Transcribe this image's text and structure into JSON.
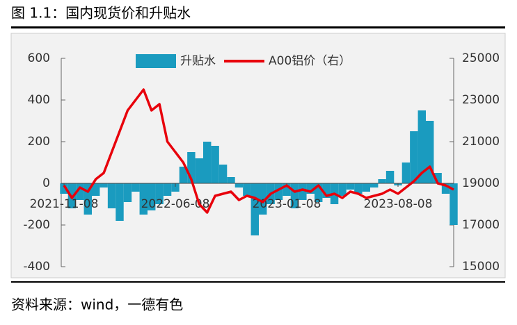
{
  "header": {
    "title": "图 1.1：国内现货价和升贴水"
  },
  "chart_data": {
    "type": "bar-line",
    "categories": [
      "2021-11-08",
      null,
      null,
      null,
      null,
      null,
      null,
      null,
      null,
      null,
      null,
      null,
      null,
      null,
      "2022-06-08",
      null,
      null,
      null,
      null,
      null,
      null,
      null,
      null,
      null,
      null,
      null,
      null,
      null,
      "2023-01-08",
      null,
      null,
      null,
      null,
      null,
      null,
      null,
      null,
      null,
      null,
      null,
      null,
      null,
      "2023-08-08",
      null,
      null,
      null,
      null,
      null,
      null,
      null
    ],
    "series": [
      {
        "name": "升贴水",
        "color": "#1a9bbf",
        "type": "bar",
        "values": [
          -50,
          -120,
          -80,
          -150,
          -60,
          -20,
          -120,
          -180,
          -90,
          -40,
          -150,
          -130,
          -100,
          -60,
          -40,
          80,
          150,
          120,
          200,
          180,
          90,
          30,
          -20,
          -60,
          -250,
          -150,
          -100,
          -80,
          -60,
          -120,
          -80,
          -50,
          -90,
          -70,
          -100,
          -60,
          -30,
          -50,
          -40,
          -20,
          20,
          60,
          -10,
          100,
          250,
          350,
          300,
          50,
          -50,
          -200
        ]
      },
      {
        "name": "A00铝价（右）",
        "color": "#e8000b",
        "type": "line",
        "axis": "y2",
        "values": [
          18900,
          18300,
          18800,
          18600,
          19200,
          19500,
          20500,
          21500,
          22500,
          23000,
          23500,
          22500,
          22800,
          21000,
          20500,
          20000,
          19200,
          18000,
          17600,
          18400,
          18500,
          18600,
          18200,
          18400,
          18300,
          18100,
          18500,
          18700,
          18900,
          18600,
          18700,
          18600,
          18900,
          18400,
          18500,
          18300,
          18600,
          18500,
          18300,
          18400,
          18500,
          18700,
          18500,
          18800,
          19100,
          19500,
          19800,
          19000,
          18900,
          18700
        ]
      }
    ],
    "ylim": [
      -400,
      600
    ],
    "yticks": [
      -400,
      -200,
      0,
      200,
      400,
      600
    ],
    "y2lim": [
      15000,
      25000
    ],
    "y2ticks": [
      15000,
      17000,
      19000,
      21000,
      23000,
      25000
    ],
    "legend": "top"
  },
  "footer": {
    "source": "资料来源：wind，一德有色"
  }
}
